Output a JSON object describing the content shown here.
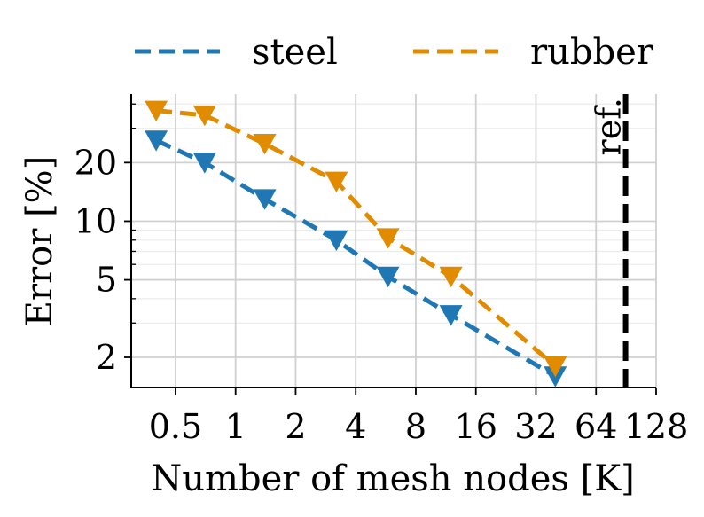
{
  "chart_data": {
    "type": "line",
    "xlabel": "Number of mesh nodes [K]",
    "ylabel": "Error [%]",
    "x_scale": "log2",
    "y_scale": "log",
    "xlim": [
      0.3,
      128
    ],
    "ylim": [
      1.4,
      45
    ],
    "x_ticks": [
      {
        "value": 0.5,
        "label": "0.5"
      },
      {
        "value": 1,
        "label": "1"
      },
      {
        "value": 2,
        "label": "2"
      },
      {
        "value": 4,
        "label": "4"
      },
      {
        "value": 8,
        "label": "8"
      },
      {
        "value": 16,
        "label": "16"
      },
      {
        "value": 32,
        "label": "32"
      },
      {
        "value": 64,
        "label": "64"
      },
      {
        "value": 128,
        "label": "128"
      }
    ],
    "y_ticks": [
      {
        "value": 2,
        "label": "2"
      },
      {
        "value": 5,
        "label": "5"
      },
      {
        "value": 10,
        "label": "10"
      },
      {
        "value": 20,
        "label": "20"
      }
    ],
    "grid": true,
    "legend_position": "top",
    "series": [
      {
        "name": "steel",
        "color": "#1f77b4",
        "marker": "triangle-down",
        "linestyle": "dashed",
        "points": [
          {
            "x": 0.4,
            "y": 26
          },
          {
            "x": 0.7,
            "y": 20
          },
          {
            "x": 1.4,
            "y": 13
          },
          {
            "x": 3.2,
            "y": 8
          },
          {
            "x": 5.8,
            "y": 5.2
          },
          {
            "x": 12,
            "y": 3.3
          },
          {
            "x": 40,
            "y": 1.6
          }
        ]
      },
      {
        "name": "rubber",
        "color": "#e08b00",
        "marker": "triangle-down",
        "linestyle": "dashed",
        "points": [
          {
            "x": 0.4,
            "y": 37
          },
          {
            "x": 0.7,
            "y": 35
          },
          {
            "x": 1.4,
            "y": 25
          },
          {
            "x": 3.2,
            "y": 16
          },
          {
            "x": 5.8,
            "y": 8.2
          },
          {
            "x": 12,
            "y": 5.2
          },
          {
            "x": 40,
            "y": 1.8
          }
        ]
      }
    ],
    "reference_line": {
      "x": 90,
      "label": "ref.",
      "color": "#000000"
    }
  }
}
